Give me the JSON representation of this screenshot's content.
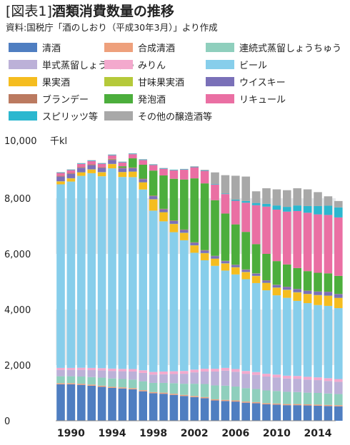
{
  "title_tag": "[図表1]",
  "title_main": "酒類消費数量の推移",
  "source": "資料:国税庁「酒のしおり（平成30年3月）」より作成",
  "chart_data": {
    "type": "bar",
    "stacked": true,
    "unit": "千kl",
    "ylim": [
      0,
      10000
    ],
    "yticks": [
      {
        "value": 0,
        "label": "0"
      },
      {
        "value": 2000,
        "label": "2,000"
      },
      {
        "value": 4000,
        "label": "4,000"
      },
      {
        "value": 6000,
        "label": "6,000"
      },
      {
        "value": 8000,
        "label": "8,000"
      },
      {
        "value": 10000,
        "label": "10,000"
      }
    ],
    "ytop_label": "10,000",
    "xtick_labels": [
      "1990",
      "1994",
      "1998",
      "2002",
      "2006",
      "2010",
      "2014"
    ],
    "categories": [
      1989,
      1990,
      1991,
      1992,
      1993,
      1994,
      1995,
      1996,
      1997,
      1998,
      1999,
      2000,
      2001,
      2002,
      2003,
      2004,
      2005,
      2006,
      2007,
      2008,
      2009,
      2010,
      2011,
      2012,
      2013,
      2014,
      2015,
      2016
    ],
    "series": [
      {
        "name": "清酒",
        "color": "#4f7ec1",
        "values": [
          1310,
          1310,
          1290,
          1260,
          1220,
          1180,
          1160,
          1130,
          1060,
          990,
          970,
          930,
          890,
          850,
          810,
          730,
          710,
          690,
          650,
          630,
          590,
          580,
          560,
          560,
          550,
          540,
          530,
          520
        ]
      },
      {
        "name": "合成清酒",
        "color": "#eea07c",
        "values": [
          40,
          40,
          40,
          40,
          40,
          40,
          40,
          40,
          40,
          40,
          40,
          40,
          40,
          40,
          40,
          40,
          40,
          40,
          40,
          40,
          40,
          40,
          40,
          40,
          40,
          40,
          40,
          40
        ]
      },
      {
        "name": "連続式蒸留しょうちゅう",
        "color": "#8fcfbd",
        "values": [
          250,
          250,
          260,
          270,
          290,
          300,
          300,
          310,
          320,
          330,
          350,
          380,
          400,
          440,
          470,
          500,
          510,
          500,
          480,
          470,
          460,
          450,
          440,
          430,
          420,
          420,
          410,
          400
        ]
      },
      {
        "name": "単式蒸留しょうちゅう",
        "color": "#bcb1d8",
        "values": [
          230,
          230,
          240,
          250,
          260,
          270,
          280,
          290,
          300,
          300,
          310,
          330,
          360,
          410,
          450,
          500,
          540,
          530,
          520,
          510,
          500,
          490,
          480,
          480,
          470,
          460,
          450,
          440
        ]
      },
      {
        "name": "みりん",
        "color": "#f3a9cd",
        "values": [
          70,
          70,
          75,
          80,
          80,
          85,
          85,
          90,
          95,
          95,
          100,
          100,
          100,
          100,
          100,
          100,
          100,
          100,
          100,
          100,
          100,
          100,
          100,
          100,
          100,
          100,
          100,
          100
        ]
      },
      {
        "name": "ビール",
        "color": "#87ceeb",
        "values": [
          6600,
          6700,
          6900,
          7000,
          6900,
          7200,
          6900,
          6900,
          6500,
          5800,
          5400,
          5000,
          4700,
          4200,
          3900,
          3700,
          3500,
          3400,
          3300,
          3200,
          3000,
          2850,
          2800,
          2700,
          2650,
          2600,
          2600,
          2550
        ]
      },
      {
        "name": "果実酒",
        "color": "#f5bd1f",
        "values": [
          100,
          110,
          120,
          130,
          140,
          150,
          170,
          190,
          250,
          400,
          320,
          290,
          260,
          260,
          250,
          250,
          250,
          250,
          250,
          250,
          260,
          270,
          280,
          300,
          320,
          350,
          360,
          360
        ]
      },
      {
        "name": "甘味果実酒",
        "color": "#b5c93a",
        "values": [
          10,
          10,
          10,
          10,
          10,
          10,
          10,
          10,
          10,
          10,
          10,
          10,
          10,
          10,
          10,
          10,
          10,
          10,
          10,
          10,
          10,
          10,
          10,
          10,
          10,
          10,
          10,
          10
        ]
      },
      {
        "name": "ウイスキー",
        "color": "#7a70b8",
        "values": [
          170,
          160,
          160,
          150,
          150,
          140,
          130,
          120,
          110,
          110,
          100,
          100,
          100,
          90,
          90,
          90,
          80,
          80,
          80,
          80,
          80,
          90,
          100,
          110,
          110,
          120,
          130,
          130
        ]
      },
      {
        "name": "ブランデー",
        "color": "#bb7a60",
        "values": [
          30,
          30,
          30,
          30,
          30,
          30,
          25,
          25,
          20,
          20,
          20,
          20,
          15,
          15,
          15,
          10,
          10,
          10,
          10,
          10,
          10,
          10,
          10,
          10,
          10,
          10,
          10,
          10
        ]
      },
      {
        "name": "発泡酒",
        "color": "#4cae3c",
        "values": [
          0,
          0,
          0,
          0,
          0,
          10,
          50,
          330,
          500,
          900,
          1200,
          1500,
          1800,
          2300,
          2400,
          2000,
          1700,
          1450,
          1350,
          1050,
          950,
          850,
          800,
          750,
          700,
          670,
          660,
          650
        ]
      },
      {
        "name": "リキュール",
        "color": "#ea6fa3",
        "values": [
          100,
          100,
          110,
          120,
          120,
          130,
          140,
          150,
          170,
          200,
          240,
          300,
          350,
          400,
          450,
          560,
          700,
          850,
          1050,
          1400,
          1700,
          1850,
          1900,
          2050,
          2100,
          2100,
          2100,
          2100
        ]
      },
      {
        "name": "スピリッツ等",
        "color": "#2bb7cf",
        "values": [
          20,
          20,
          20,
          20,
          20,
          20,
          20,
          20,
          20,
          20,
          20,
          20,
          20,
          20,
          20,
          20,
          20,
          40,
          60,
          80,
          100,
          150,
          170,
          200,
          240,
          300,
          330,
          360
        ]
      },
      {
        "name": "その他の醸造酒等",
        "color": "#a8a8a8",
        "values": [
          10,
          10,
          10,
          10,
          10,
          10,
          10,
          10,
          10,
          10,
          10,
          10,
          10,
          15,
          20,
          420,
          660,
          860,
          880,
          420,
          560,
          580,
          600,
          620,
          600,
          500,
          340,
          230
        ]
      }
    ]
  }
}
